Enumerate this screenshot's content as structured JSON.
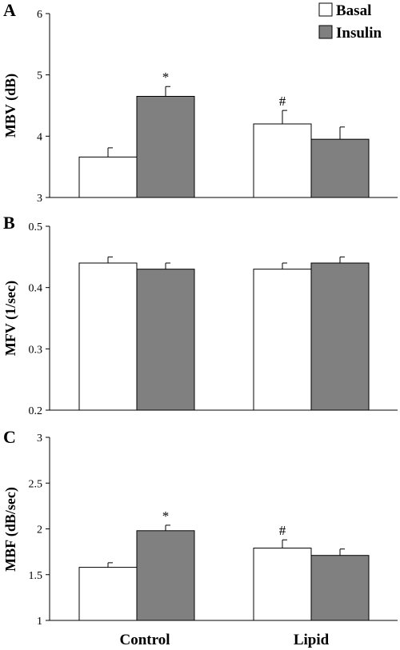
{
  "legend": {
    "items": [
      {
        "label": "Basal",
        "color": "#ffffff"
      },
      {
        "label": "Insulin",
        "color": "#808080"
      }
    ]
  },
  "chart_data": [
    {
      "type": "bar",
      "panel": "A",
      "ylabel": "MBV (dB)",
      "ylim": [
        3,
        6
      ],
      "yticks": [
        "3",
        "4",
        "5",
        "6"
      ],
      "categories": [
        "Control",
        "Lipid"
      ],
      "series": [
        {
          "name": "Basal",
          "color": "#ffffff",
          "values": [
            3.66,
            4.2
          ],
          "errors": [
            0.15,
            0.22
          ]
        },
        {
          "name": "Insulin",
          "color": "#808080",
          "values": [
            4.65,
            3.95
          ],
          "errors": [
            0.16,
            0.2
          ]
        }
      ],
      "annotations": [
        {
          "text": "*",
          "category": "Control",
          "series": "Insulin"
        },
        {
          "text": "#",
          "category": "Lipid",
          "series": "Basal"
        }
      ]
    },
    {
      "type": "bar",
      "panel": "B",
      "ylabel": "MFV (1/sec)",
      "ylim": [
        0.2,
        0.5
      ],
      "yticks": [
        "0.2",
        "0.3",
        "0.4",
        "0.5"
      ],
      "categories": [
        "Control",
        "Lipid"
      ],
      "series": [
        {
          "name": "Basal",
          "color": "#ffffff",
          "values": [
            0.44,
            0.43
          ],
          "errors": [
            0.01,
            0.01
          ]
        },
        {
          "name": "Insulin",
          "color": "#808080",
          "values": [
            0.43,
            0.44
          ],
          "errors": [
            0.01,
            0.01
          ]
        }
      ],
      "annotations": []
    },
    {
      "type": "bar",
      "panel": "C",
      "ylabel": "MBF (dB/sec)",
      "ylim": [
        1,
        3
      ],
      "yticks": [
        "1",
        "1.5",
        "2",
        "2.5",
        "3"
      ],
      "categories": [
        "Control",
        "Lipid"
      ],
      "series": [
        {
          "name": "Basal",
          "color": "#ffffff",
          "values": [
            1.58,
            1.79
          ],
          "errors": [
            0.05,
            0.09
          ]
        },
        {
          "name": "Insulin",
          "color": "#808080",
          "values": [
            1.98,
            1.71
          ],
          "errors": [
            0.06,
            0.07
          ]
        }
      ],
      "annotations": [
        {
          "text": "*",
          "category": "Control",
          "series": "Insulin"
        },
        {
          "text": "#",
          "category": "Lipid",
          "series": "Basal"
        }
      ]
    }
  ]
}
